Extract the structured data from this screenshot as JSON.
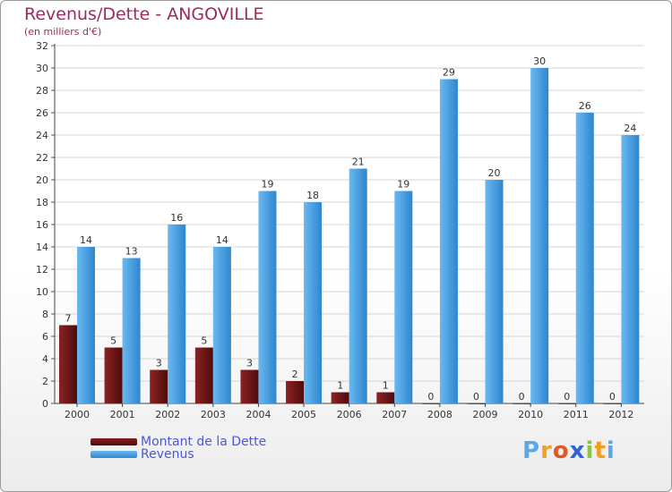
{
  "title": "Revenus/Dette - ANGOVILLE",
  "subtitle": "(en milliers d'€)",
  "colors": {
    "title": "#9c2a5e",
    "dette": "#6b1212",
    "revenus": "#4ea6e6",
    "grid": "#d5d5d5",
    "legend_text": "#4a57d8"
  },
  "legend": {
    "dette_label": "Montant de la Dette",
    "revenus_label": "Revenus"
  },
  "logo": {
    "letters": [
      "P",
      "r",
      "o",
      "x",
      "i",
      "t",
      "i"
    ],
    "colors": [
      "#5aa9e6",
      "#f2a02c",
      "#e2572a",
      "#2f62d9",
      "#8cc63f",
      "#f29b1d",
      "#5aa9e6"
    ]
  },
  "chart_data": {
    "type": "bar",
    "title": "Revenus/Dette - ANGOVILLE",
    "subtitle": "(en milliers d'€)",
    "xlabel": "",
    "ylabel": "",
    "ylim": [
      0,
      32
    ],
    "yticks": [
      0,
      2,
      4,
      6,
      8,
      10,
      12,
      14,
      16,
      18,
      20,
      22,
      24,
      26,
      28,
      30,
      32
    ],
    "grid": true,
    "legend_position": "bottom-left",
    "categories": [
      "2000",
      "2001",
      "2002",
      "2003",
      "2004",
      "2005",
      "2006",
      "2007",
      "2008",
      "2009",
      "2010",
      "2011",
      "2012"
    ],
    "series": [
      {
        "name": "Montant de la Dette",
        "values": [
          7,
          5,
          3,
          5,
          3,
          2,
          1,
          1,
          0,
          0,
          0,
          0,
          0
        ]
      },
      {
        "name": "Revenus",
        "values": [
          14,
          13,
          16,
          14,
          19,
          18,
          21,
          19,
          29,
          20,
          30,
          26,
          24
        ]
      }
    ]
  }
}
